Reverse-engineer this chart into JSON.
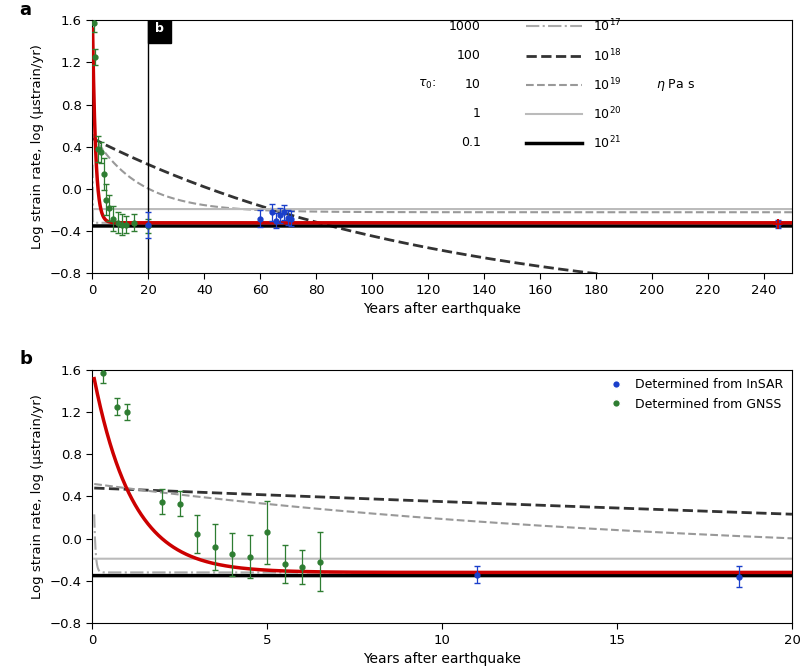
{
  "ylabel": "Log strain rate, log (μstrain/yr)",
  "xlabel": "Years after earthquake",
  "ylim": [
    -0.8,
    1.6
  ],
  "xlim_a": [
    0,
    250
  ],
  "xlim_b": [
    0,
    20
  ],
  "xticks_a": [
    0,
    20,
    40,
    60,
    80,
    100,
    120,
    140,
    160,
    180,
    200,
    220,
    240
  ],
  "xticks_b": [
    0,
    5,
    10,
    15,
    20
  ],
  "yticks": [
    -0.8,
    -0.4,
    0.0,
    0.4,
    0.8,
    1.2,
    1.6
  ],
  "gnss_xa": [
    0.5,
    1.0,
    2.0,
    3.0,
    4.0,
    5.0,
    6.0,
    7.5,
    9.0,
    10.5,
    12.0,
    15.0,
    20.0
  ],
  "gnss_ya": [
    1.57,
    1.25,
    0.38,
    0.35,
    0.14,
    -0.1,
    -0.18,
    -0.28,
    -0.32,
    -0.34,
    -0.34,
    -0.32,
    -0.35
  ],
  "gnss_erra": [
    0.08,
    0.08,
    0.12,
    0.1,
    0.15,
    0.15,
    0.12,
    0.12,
    0.1,
    0.1,
    0.08,
    0.08,
    0.07
  ],
  "insar_xa": [
    20.0,
    60.0,
    64.0,
    65.5,
    67.0,
    68.5,
    70.0,
    71.0,
    245.0
  ],
  "insar_ya": [
    -0.34,
    -0.28,
    -0.22,
    -0.3,
    -0.25,
    -0.22,
    -0.27,
    -0.28,
    -0.33
  ],
  "insar_erra": [
    0.12,
    0.08,
    0.08,
    0.07,
    0.07,
    0.07,
    0.07,
    0.07,
    0.04
  ],
  "gnss_xb": [
    0.3,
    0.7,
    1.0,
    2.0,
    2.5,
    3.0,
    3.5,
    4.0,
    4.5,
    5.0,
    5.5,
    6.0,
    6.5
  ],
  "gnss_yb": [
    1.57,
    1.25,
    1.2,
    0.35,
    0.33,
    0.04,
    -0.08,
    -0.15,
    -0.17,
    0.06,
    -0.24,
    -0.27,
    -0.22
  ],
  "gnss_errb": [
    0.1,
    0.08,
    0.08,
    0.12,
    0.12,
    0.18,
    0.22,
    0.2,
    0.2,
    0.3,
    0.18,
    0.16,
    0.28
  ],
  "insar_xb": [
    11.0,
    18.5
  ],
  "insar_yb": [
    -0.34,
    -0.36
  ],
  "insar_errb": [
    0.08,
    0.1
  ],
  "red_curve_color": "#cc0000",
  "gnss_color": "#2e7d32",
  "insar_color": "#1a3fcb",
  "curve_params": [
    [
      1.6,
      25.0,
      -0.32
    ],
    [
      0.48,
      0.008,
      -1.2
    ],
    [
      0.52,
      0.06,
      -0.22
    ],
    [
      -0.19,
      0.0,
      -0.19
    ],
    [
      -0.35,
      0.0,
      -0.35
    ]
  ],
  "model_colors": [
    "#aaaaaa",
    "#333333",
    "#999999",
    "#bbbbbb",
    "#000000"
  ],
  "model_styles": [
    "-.",
    "--",
    "--",
    "-",
    "-"
  ],
  "model_lw": [
    1.5,
    2.0,
    1.5,
    1.5,
    2.5
  ],
  "tau_vals": [
    "1000",
    "100",
    "10",
    "1",
    "0.1"
  ],
  "eta_vals": [
    "$10^{17}$",
    "$10^{18}$",
    "$10^{19}$",
    "$10^{20}$",
    "$10^{21}$"
  ],
  "background_color": "#ffffff"
}
